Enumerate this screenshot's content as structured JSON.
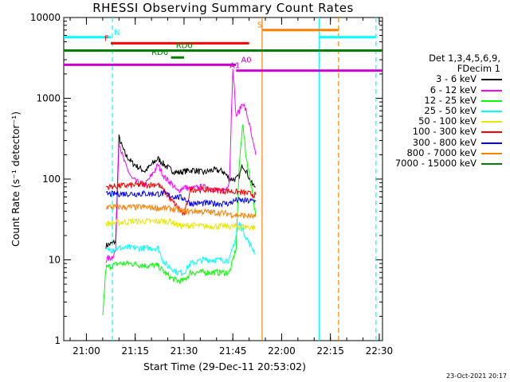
{
  "chart_data": {
    "type": "line",
    "title": "RHESSI Observing Summary Count Rates",
    "xlabel": "Start Time (29-Dec-11 20:53:02)",
    "ylabel": "Count Rate (s⁻¹ detector⁻¹)",
    "yscale": "log",
    "xlim": [
      "20:53:02",
      "22:31:00"
    ],
    "ylim": [
      1,
      10000
    ],
    "x_ticks": [
      "21:00",
      "21:15",
      "21:30",
      "21:45",
      "22:00",
      "22:15",
      "22:30"
    ],
    "y_ticks": [
      "1",
      "10",
      "100",
      "1000",
      "10000"
    ],
    "legend_header": [
      "Det 1,3,4,5,6,9,",
      "FDecim 1"
    ],
    "series": [
      {
        "name": "3 - 6 keV",
        "color": "#000000",
        "points": [
          [
            "21:06",
            15
          ],
          [
            "21:08",
            16
          ],
          [
            "21:09",
            17
          ],
          [
            "21:10",
            330
          ],
          [
            "21:11",
            250
          ],
          [
            "21:12",
            200
          ],
          [
            "21:14",
            160
          ],
          [
            "21:16",
            140
          ],
          [
            "21:18",
            125
          ],
          [
            "21:20",
            150
          ],
          [
            "21:22",
            180
          ],
          [
            "21:24",
            150
          ],
          [
            "21:26",
            130
          ],
          [
            "21:28",
            120
          ],
          [
            "21:30",
            125
          ],
          [
            "21:33",
            130
          ],
          [
            "21:36",
            120
          ],
          [
            "21:39",
            130
          ],
          [
            "21:42",
            125
          ],
          [
            "21:44",
            100
          ],
          [
            "21:46",
            100
          ],
          [
            "21:47",
            110
          ],
          [
            "21:48",
            150
          ],
          [
            "21:49",
            130
          ],
          [
            "21:51",
            85
          ],
          [
            "21:52",
            80
          ]
        ]
      },
      {
        "name": "6 - 12 keV",
        "color": "#ff00ff",
        "points": [
          [
            "21:06",
            10
          ],
          [
            "21:08",
            11
          ],
          [
            "21:09",
            13
          ],
          [
            "21:10",
            300
          ],
          [
            "21:11",
            200
          ],
          [
            "21:12",
            150
          ],
          [
            "21:14",
            100
          ],
          [
            "21:16",
            90
          ],
          [
            "21:18",
            85
          ],
          [
            "21:20",
            110
          ],
          [
            "21:22",
            150
          ],
          [
            "21:24",
            105
          ],
          [
            "21:26",
            90
          ],
          [
            "21:28",
            70
          ],
          [
            "21:30",
            80
          ],
          [
            "21:32",
            75
          ],
          [
            "21:35",
            80
          ],
          [
            "21:38",
            78
          ],
          [
            "21:41",
            70
          ],
          [
            "21:43",
            75
          ],
          [
            "21:44",
            100
          ],
          [
            "21:45",
            2500
          ],
          [
            "21:46",
            600
          ],
          [
            "21:47",
            700
          ],
          [
            "21:48",
            900
          ],
          [
            "21:49",
            700
          ],
          [
            "21:50",
            500
          ],
          [
            "21:51",
            300
          ],
          [
            "21:52",
            200
          ]
        ]
      },
      {
        "name": "12 - 25 keV",
        "color": "#00ff00",
        "points": [
          [
            "21:05",
            2
          ],
          [
            "21:06",
            8
          ],
          [
            "21:10",
            9
          ],
          [
            "21:14",
            9
          ],
          [
            "21:18",
            8.5
          ],
          [
            "21:22",
            8.5
          ],
          [
            "21:24",
            7
          ],
          [
            "21:26",
            6
          ],
          [
            "21:28",
            5.5
          ],
          [
            "21:30",
            5.5
          ],
          [
            "21:32",
            7
          ],
          [
            "21:36",
            7
          ],
          [
            "21:40",
            7
          ],
          [
            "21:44",
            7
          ],
          [
            "21:46",
            14
          ],
          [
            "21:47",
            150
          ],
          [
            "21:48",
            500
          ],
          [
            "21:49",
            200
          ],
          [
            "21:51",
            70
          ],
          [
            "21:52",
            35
          ]
        ]
      },
      {
        "name": "25 - 50 keV",
        "color": "#00ffff",
        "points": [
          [
            "21:06",
            13
          ],
          [
            "21:10",
            14
          ],
          [
            "21:14",
            14
          ],
          [
            "21:18",
            14
          ],
          [
            "21:22",
            14
          ],
          [
            "21:24",
            9
          ],
          [
            "21:26",
            8
          ],
          [
            "21:28",
            7
          ],
          [
            "21:30",
            7
          ],
          [
            "21:32",
            9
          ],
          [
            "21:36",
            10
          ],
          [
            "21:40",
            10
          ],
          [
            "21:44",
            10
          ],
          [
            "21:46",
            20
          ],
          [
            "21:47",
            28
          ],
          [
            "21:48",
            24
          ],
          [
            "21:50",
            16
          ],
          [
            "21:51",
            14
          ],
          [
            "21:52",
            12
          ]
        ]
      },
      {
        "name": "50 - 100 keV",
        "color": "#e8e800",
        "points": [
          [
            "21:06",
            28
          ],
          [
            "21:10",
            29
          ],
          [
            "21:14",
            30
          ],
          [
            "21:18",
            30
          ],
          [
            "21:22",
            30
          ],
          [
            "21:24",
            30
          ],
          [
            "21:26",
            30
          ],
          [
            "21:28",
            27
          ],
          [
            "21:30",
            26
          ],
          [
            "21:32",
            27
          ],
          [
            "21:36",
            26
          ],
          [
            "21:40",
            26
          ],
          [
            "21:44",
            26
          ],
          [
            "21:48",
            26
          ],
          [
            "21:52",
            25
          ]
        ]
      },
      {
        "name": "100 - 300 keV",
        "color": "#ff0000",
        "points": [
          [
            "21:06",
            80
          ],
          [
            "21:10",
            82
          ],
          [
            "21:14",
            84
          ],
          [
            "21:18",
            85
          ],
          [
            "21:22",
            86
          ],
          [
            "21:24",
            70
          ],
          [
            "21:26",
            55
          ],
          [
            "21:28",
            45
          ],
          [
            "21:30",
            35
          ],
          [
            "21:32",
            75
          ],
          [
            "21:36",
            74
          ],
          [
            "21:40",
            73
          ],
          [
            "21:44",
            71
          ],
          [
            "21:48",
            68
          ],
          [
            "21:52",
            64
          ]
        ]
      },
      {
        "name": "300 - 800 keV",
        "color": "#0000ff",
        "points": [
          [
            "21:06",
            65
          ],
          [
            "21:10",
            66
          ],
          [
            "21:14",
            66
          ],
          [
            "21:18",
            66
          ],
          [
            "21:22",
            66
          ],
          [
            "21:24",
            66
          ],
          [
            "21:26",
            62
          ],
          [
            "21:28",
            60
          ],
          [
            "21:30",
            58
          ],
          [
            "21:32",
            50
          ],
          [
            "21:36",
            50
          ],
          [
            "21:40",
            50
          ],
          [
            "21:44",
            50
          ],
          [
            "21:46",
            55
          ],
          [
            "21:48",
            54
          ],
          [
            "21:52",
            53
          ]
        ]
      },
      {
        "name": "800 - 7000 keV",
        "color": "#ff8000",
        "points": [
          [
            "21:06",
            45
          ],
          [
            "21:10",
            45
          ],
          [
            "21:14",
            45
          ],
          [
            "21:18",
            45
          ],
          [
            "21:22",
            44
          ],
          [
            "21:26",
            43
          ],
          [
            "21:30",
            40
          ],
          [
            "21:34",
            40
          ],
          [
            "21:38",
            39
          ],
          [
            "21:42",
            38
          ],
          [
            "21:46",
            36
          ],
          [
            "21:50",
            35
          ],
          [
            "21:52",
            34
          ]
        ]
      },
      {
        "name": "7000 - 15000 keV",
        "color": "#008000",
        "points": []
      }
    ],
    "flag_bars": [
      {
        "label": "N",
        "color": "#00ffff",
        "y": 5700,
        "segments": [
          [
            "20:53:02",
            "21:07:30"
          ],
          [
            "22:11:30",
            "22:29:00"
          ]
        ],
        "label_x": "21:08:30"
      },
      {
        "label": "F",
        "color": "#ff0000",
        "y": 4800,
        "segments": [
          [
            "21:07:30",
            "21:50:00"
          ]
        ],
        "label_x": "21:05:30"
      },
      {
        "label": "RD0",
        "color": "#008000",
        "y": 3900,
        "segments": [
          [
            "20:53:02",
            "22:31:00"
          ]
        ],
        "label_x": "21:27:30"
      },
      {
        "label": "RD6",
        "color": "#008000",
        "y": 3200,
        "segments": [
          [
            "21:26:00",
            "21:30:00"
          ]
        ],
        "label_x": "21:20:00"
      },
      {
        "label": "S",
        "color": "#ff8000",
        "y": 7000,
        "segments": [
          [
            "21:54:00",
            "22:17:30"
          ]
        ],
        "label_x": "21:52:30"
      },
      {
        "label": "A0",
        "color": "#cc00cc",
        "y": 2600,
        "segments": [
          [
            "20:53:02",
            "21:46:00"
          ]
        ],
        "label_x": "21:47:30"
      },
      {
        "label": "A1",
        "color": "#cc00cc",
        "y": 2200,
        "segments": [
          [
            "21:46:00",
            "22:31:00"
          ]
        ],
        "label_x": "21:44:00"
      }
    ],
    "vertical_markers": [
      {
        "x": "21:08:00",
        "color": "#00ffff",
        "style": "dashed"
      },
      {
        "x": "22:29:00",
        "color": "#00ffff",
        "style": "dashed"
      },
      {
        "x": "22:11:30",
        "color": "#00ffff",
        "style": "solid"
      },
      {
        "x": "21:54:00",
        "color": "#ff8000",
        "style": "solid"
      },
      {
        "x": "22:17:30",
        "color": "#ff8000",
        "style": "dashed"
      }
    ]
  },
  "footer": {
    "timestamp": "23-Oct-2021 20:17"
  }
}
